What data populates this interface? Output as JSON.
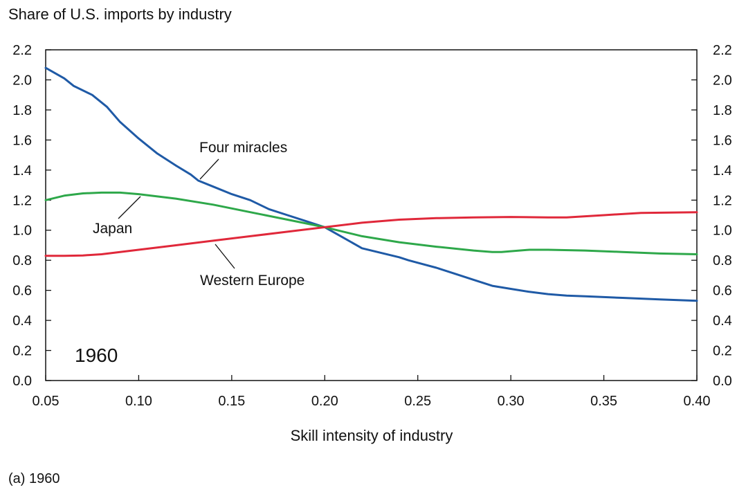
{
  "caption": "(a) 1960",
  "chart_data": {
    "type": "line",
    "title": "",
    "ylabel": "Share of U.S. imports by industry",
    "xlabel": "Skill intensity of industry",
    "xlim": [
      0.05,
      0.4
    ],
    "ylim": [
      0.0,
      2.2
    ],
    "x_ticks": [
      "0.05",
      "0.10",
      "0.15",
      "0.20",
      "0.25",
      "0.30",
      "0.35",
      "0.40"
    ],
    "y_ticks": [
      "0.0",
      "0.2",
      "0.4",
      "0.6",
      "0.8",
      "1.0",
      "1.2",
      "1.4",
      "1.6",
      "1.8",
      "2.0",
      "2.2"
    ],
    "grid": false,
    "legend": "none",
    "year_annotation": "1960",
    "series": [
      {
        "name": "Four miracles",
        "color": "#1f5aa6",
        "x": [
          0.05,
          0.06,
          0.065,
          0.075,
          0.083,
          0.09,
          0.1,
          0.11,
          0.12,
          0.128,
          0.132,
          0.14,
          0.15,
          0.155,
          0.16,
          0.17,
          0.18,
          0.19,
          0.195,
          0.2,
          0.21,
          0.22,
          0.23,
          0.24,
          0.245,
          0.26,
          0.27,
          0.28,
          0.29,
          0.3,
          0.31,
          0.32,
          0.33,
          0.34,
          0.35,
          0.36,
          0.37,
          0.38,
          0.39,
          0.4
        ],
        "y": [
          2.08,
          2.01,
          1.96,
          1.9,
          1.82,
          1.72,
          1.61,
          1.51,
          1.43,
          1.37,
          1.33,
          1.29,
          1.24,
          1.22,
          1.2,
          1.14,
          1.1,
          1.06,
          1.04,
          1.02,
          0.95,
          0.88,
          0.85,
          0.82,
          0.8,
          0.75,
          0.71,
          0.67,
          0.63,
          0.61,
          0.59,
          0.575,
          0.565,
          0.56,
          0.555,
          0.55,
          0.545,
          0.54,
          0.535,
          0.53
        ]
      },
      {
        "name": "Japan",
        "color": "#2ea84a",
        "x": [
          0.05,
          0.06,
          0.07,
          0.08,
          0.09,
          0.1,
          0.12,
          0.14,
          0.16,
          0.18,
          0.2,
          0.22,
          0.24,
          0.26,
          0.28,
          0.29,
          0.295,
          0.3,
          0.31,
          0.32,
          0.34,
          0.36,
          0.38,
          0.4
        ],
        "y": [
          1.2,
          1.23,
          1.245,
          1.25,
          1.25,
          1.24,
          1.21,
          1.17,
          1.12,
          1.07,
          1.02,
          0.96,
          0.92,
          0.89,
          0.865,
          0.855,
          0.855,
          0.86,
          0.87,
          0.87,
          0.865,
          0.855,
          0.845,
          0.84
        ]
      },
      {
        "name": "Western Europe",
        "color": "#e0283a",
        "x": [
          0.05,
          0.06,
          0.07,
          0.08,
          0.09,
          0.1,
          0.12,
          0.14,
          0.16,
          0.18,
          0.2,
          0.22,
          0.24,
          0.26,
          0.28,
          0.3,
          0.32,
          0.33,
          0.35,
          0.37,
          0.4
        ],
        "y": [
          0.83,
          0.83,
          0.832,
          0.84,
          0.855,
          0.87,
          0.9,
          0.93,
          0.96,
          0.99,
          1.02,
          1.05,
          1.07,
          1.08,
          1.085,
          1.088,
          1.085,
          1.085,
          1.1,
          1.115,
          1.12
        ]
      }
    ],
    "annotations": [
      {
        "text": "Four miracles",
        "series": "Four miracles"
      },
      {
        "text": "Japan",
        "series": "Japan"
      },
      {
        "text": "Western Europe",
        "series": "Western Europe"
      }
    ]
  }
}
